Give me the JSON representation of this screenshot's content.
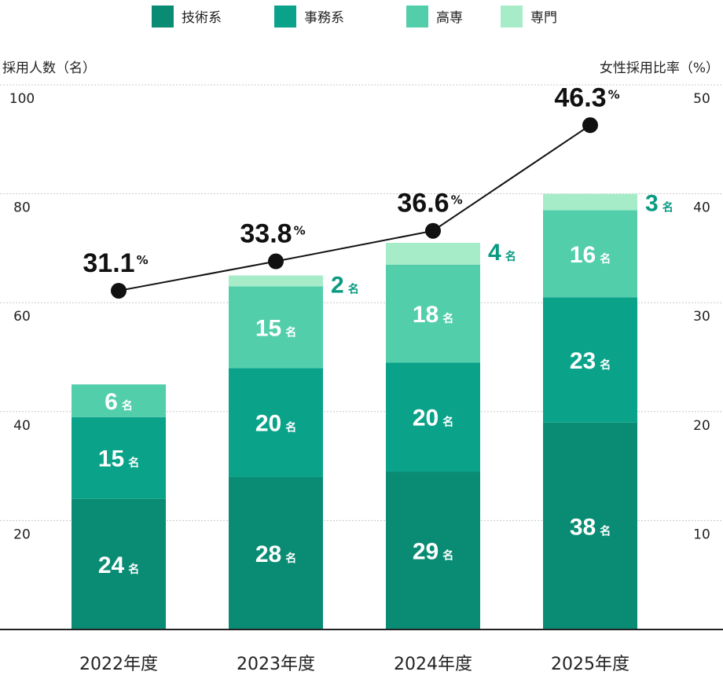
{
  "chart_data": {
    "type": "bar",
    "stacked": true,
    "categories": [
      "2022年度",
      "2023年度",
      "2024年度",
      "2025年度"
    ],
    "series": [
      {
        "name": "技術系",
        "color": "#0a8c74",
        "values": [
          24,
          28,
          29,
          38
        ]
      },
      {
        "name": "事務系",
        "color": "#0aa38a",
        "values": [
          15,
          20,
          20,
          23
        ]
      },
      {
        "name": "高専",
        "color": "#52ceab",
        "values": [
          6,
          15,
          18,
          16
        ]
      },
      {
        "name": "専門",
        "color": "#a7ecc9",
        "values": [
          0,
          2,
          4,
          3
        ]
      }
    ],
    "line_series": {
      "values": [
        31.1,
        33.8,
        36.6,
        46.3
      ],
      "unit": "%",
      "color": "#111111"
    },
    "count_unit": "名",
    "ylabel": "採用人数（名）",
    "y2label": "女性採用比率（%）",
    "ylim": [
      0,
      100
    ],
    "y2lim": [
      0,
      50
    ],
    "yticks": [
      "20",
      "40",
      "60",
      "80",
      "100"
    ],
    "y2ticks": [
      "10",
      "20",
      "30",
      "40",
      "50"
    ],
    "grid": true,
    "legend": "top"
  }
}
